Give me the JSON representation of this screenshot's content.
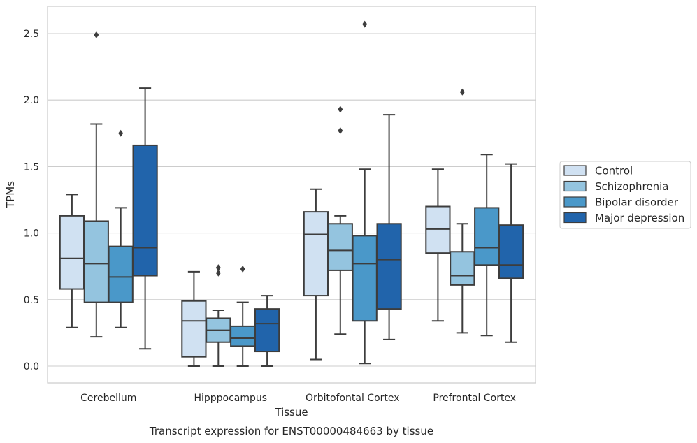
{
  "chart_data": {
    "type": "boxplot",
    "title": "Transcript expression for ENST00000484663 by tissue",
    "xlabel": "Tissue",
    "ylabel": "TPMs",
    "ylim": [
      -0.12,
      2.72
    ],
    "yticks": [
      "0.0",
      "0.5",
      "1.0",
      "1.5",
      "2.0",
      "2.5"
    ],
    "grid": true,
    "legend_position": "right",
    "categories": [
      "Cerebellum",
      "Hipppocampus",
      "Orbitofontal Cortex",
      "Prefrontal Cortex"
    ],
    "series": [
      {
        "name": "Control",
        "color": "#d0e1f2",
        "boxes": [
          {
            "whisker_low": 0.29,
            "q1": 0.58,
            "median": 0.81,
            "q3": 1.13,
            "whisker_high": 1.29,
            "outliers": []
          },
          {
            "whisker_low": 0.0,
            "q1": 0.07,
            "median": 0.34,
            "q3": 0.49,
            "whisker_high": 0.71,
            "outliers": []
          },
          {
            "whisker_low": 0.05,
            "q1": 0.53,
            "median": 0.99,
            "q3": 1.16,
            "whisker_high": 1.33,
            "outliers": []
          },
          {
            "whisker_low": 0.34,
            "q1": 0.85,
            "median": 1.03,
            "q3": 1.2,
            "whisker_high": 1.48,
            "outliers": []
          }
        ]
      },
      {
        "name": "Schizophrenia",
        "color": "#94c4df",
        "boxes": [
          {
            "whisker_low": 0.22,
            "q1": 0.48,
            "median": 0.77,
            "q3": 1.09,
            "whisker_high": 1.82,
            "outliers": [
              2.49
            ]
          },
          {
            "whisker_low": 0.0,
            "q1": 0.18,
            "median": 0.27,
            "q3": 0.36,
            "whisker_high": 0.42,
            "outliers": [
              0.74,
              0.7
            ]
          },
          {
            "whisker_low": 0.24,
            "q1": 0.72,
            "median": 0.87,
            "q3": 1.07,
            "whisker_high": 1.13,
            "outliers": [
              1.93,
              1.77
            ]
          },
          {
            "whisker_low": 0.25,
            "q1": 0.61,
            "median": 0.68,
            "q3": 0.86,
            "whisker_high": 1.07,
            "outliers": [
              2.06
            ]
          }
        ]
      },
      {
        "name": "Bipolar disorder",
        "color": "#4a98c9",
        "boxes": [
          {
            "whisker_low": 0.29,
            "q1": 0.48,
            "median": 0.67,
            "q3": 0.9,
            "whisker_high": 1.19,
            "outliers": [
              1.75
            ]
          },
          {
            "whisker_low": 0.0,
            "q1": 0.15,
            "median": 0.21,
            "q3": 0.3,
            "whisker_high": 0.48,
            "outliers": [
              0.73
            ]
          },
          {
            "whisker_low": 0.02,
            "q1": 0.34,
            "median": 0.77,
            "q3": 0.98,
            "whisker_high": 1.48,
            "outliers": [
              2.57
            ]
          },
          {
            "whisker_low": 0.23,
            "q1": 0.76,
            "median": 0.89,
            "q3": 1.19,
            "whisker_high": 1.59,
            "outliers": []
          }
        ]
      },
      {
        "name": "Major depression",
        "color": "#2164ab",
        "boxes": [
          {
            "whisker_low": 0.13,
            "q1": 0.68,
            "median": 0.89,
            "q3": 1.66,
            "whisker_high": 2.09,
            "outliers": []
          },
          {
            "whisker_low": 0.0,
            "q1": 0.11,
            "median": 0.32,
            "q3": 0.43,
            "whisker_high": 0.53,
            "outliers": []
          },
          {
            "whisker_low": 0.2,
            "q1": 0.43,
            "median": 0.8,
            "q3": 1.07,
            "whisker_high": 1.89,
            "outliers": []
          },
          {
            "whisker_low": 0.18,
            "q1": 0.66,
            "median": 0.76,
            "q3": 1.06,
            "whisker_high": 1.52,
            "outliers": []
          }
        ]
      }
    ]
  }
}
